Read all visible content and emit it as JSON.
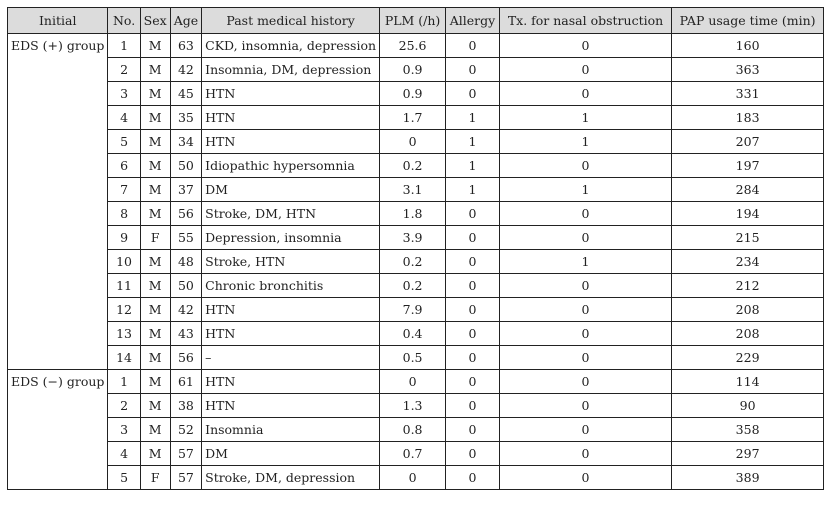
{
  "headers": {
    "initial": "Initial",
    "no": "No.",
    "sex": "Sex",
    "age": "Age",
    "pmh": "Past medical history",
    "plm": "PLM (/h)",
    "allergy": "Allergy",
    "tx": "Tx. for nasal obstruction",
    "pap": "PAP usage time (min)"
  },
  "groups": [
    {
      "label": "EDS (+) group",
      "rows": [
        {
          "no": "1",
          "sex": "M",
          "age": "63",
          "pmh": "CKD, insomnia, depression",
          "plm": "25.6",
          "allergy": "0",
          "tx": "0",
          "pap": "160"
        },
        {
          "no": "2",
          "sex": "M",
          "age": "42",
          "pmh": "Insomnia, DM, depression",
          "plm": "0.9",
          "allergy": "0",
          "tx": "0",
          "pap": "363"
        },
        {
          "no": "3",
          "sex": "M",
          "age": "45",
          "pmh": "HTN",
          "plm": "0.9",
          "allergy": "0",
          "tx": "0",
          "pap": "331"
        },
        {
          "no": "4",
          "sex": "M",
          "age": "35",
          "pmh": "HTN",
          "plm": "1.7",
          "allergy": "1",
          "tx": "1",
          "pap": "183"
        },
        {
          "no": "5",
          "sex": "M",
          "age": "34",
          "pmh": "HTN",
          "plm": "0",
          "allergy": "1",
          "tx": "1",
          "pap": "207"
        },
        {
          "no": "6",
          "sex": "M",
          "age": "50",
          "pmh": "Idiopathic hypersomnia",
          "plm": "0.2",
          "allergy": "1",
          "tx": "0",
          "pap": "197"
        },
        {
          "no": "7",
          "sex": "M",
          "age": "37",
          "pmh": "DM",
          "plm": "3.1",
          "allergy": "1",
          "tx": "1",
          "pap": "284"
        },
        {
          "no": "8",
          "sex": "M",
          "age": "56",
          "pmh": "Stroke, DM, HTN",
          "plm": "1.8",
          "allergy": "0",
          "tx": "0",
          "pap": "194"
        },
        {
          "no": "9",
          "sex": "F",
          "age": "55",
          "pmh": "Depression, insomnia",
          "plm": "3.9",
          "allergy": "0",
          "tx": "0",
          "pap": "215"
        },
        {
          "no": "10",
          "sex": "M",
          "age": "48",
          "pmh": "Stroke, HTN",
          "plm": "0.2",
          "allergy": "0",
          "tx": "1",
          "pap": "234"
        },
        {
          "no": "11",
          "sex": "M",
          "age": "50",
          "pmh": "Chronic bronchitis",
          "plm": "0.2",
          "allergy": "0",
          "tx": "0",
          "pap": "212"
        },
        {
          "no": "12",
          "sex": "M",
          "age": "42",
          "pmh": "HTN",
          "plm": "7.9",
          "allergy": "0",
          "tx": "0",
          "pap": "208"
        },
        {
          "no": "13",
          "sex": "M",
          "age": "43",
          "pmh": "HTN",
          "plm": "0.4",
          "allergy": "0",
          "tx": "0",
          "pap": "208"
        },
        {
          "no": "14",
          "sex": "M",
          "age": "56",
          "pmh": "–",
          "plm": "0.5",
          "allergy": "0",
          "tx": "0",
          "pap": "229"
        }
      ]
    },
    {
      "label": "EDS (−) group",
      "rows": [
        {
          "no": "1",
          "sex": "M",
          "age": "61",
          "pmh": "HTN",
          "plm": "0",
          "allergy": "0",
          "tx": "0",
          "pap": "114"
        },
        {
          "no": "2",
          "sex": "M",
          "age": "38",
          "pmh": "HTN",
          "plm": "1.3",
          "allergy": "0",
          "tx": "0",
          "pap": "90"
        },
        {
          "no": "3",
          "sex": "M",
          "age": "52",
          "pmh": "Insomnia",
          "plm": "0.8",
          "allergy": "0",
          "tx": "0",
          "pap": "358"
        },
        {
          "no": "4",
          "sex": "M",
          "age": "57",
          "pmh": "DM",
          "plm": "0.7",
          "allergy": "0",
          "tx": "0",
          "pap": "297"
        },
        {
          "no": "5",
          "sex": "F",
          "age": "57",
          "pmh": "Stroke, DM, depression",
          "plm": "0",
          "allergy": "0",
          "tx": "0",
          "pap": "389"
        }
      ]
    }
  ]
}
